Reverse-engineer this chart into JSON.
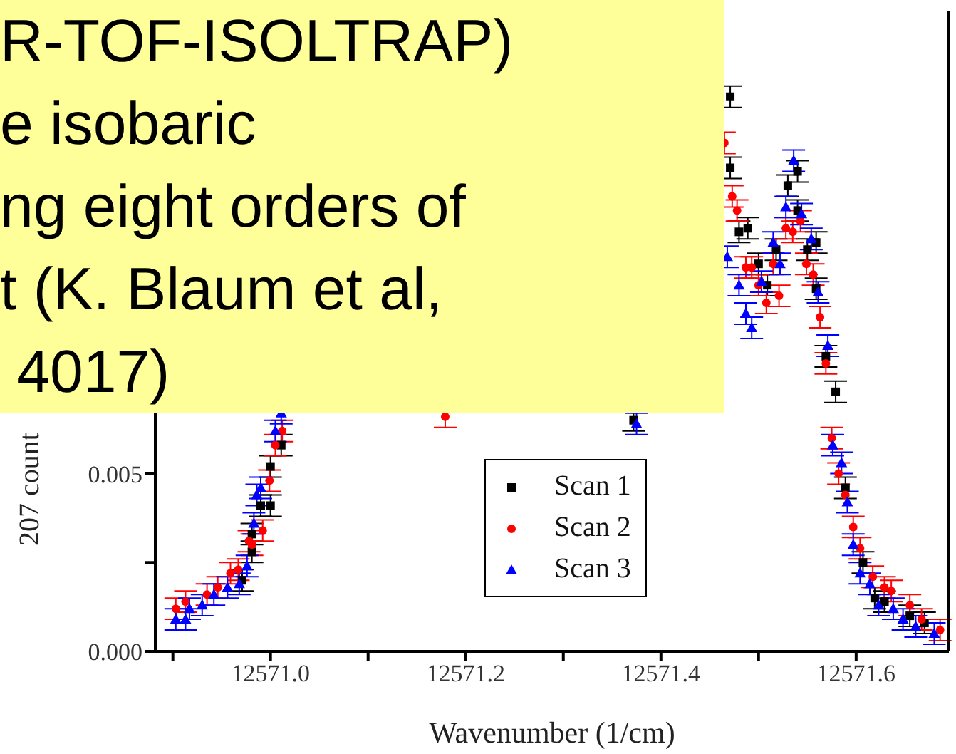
{
  "chart_data": {
    "type": "scatter",
    "xlabel": "Wavenumber (1/cm)",
    "ylabel": "207 count",
    "annotations": [
      "R-TOF-ISOLTRAP)",
      "e isobaric",
      "ng eight orders of",
      "t (K. Blaum et al,",
      " 4017)"
    ],
    "xlim": [
      12570.882,
      12571.695
    ],
    "ylim": [
      0,
      0.018
    ],
    "xticks": [
      {
        "value": 12570.9,
        "label": null
      },
      {
        "value": 12571.0,
        "label": "12571.0"
      },
      {
        "value": 12571.1,
        "label": null
      },
      {
        "value": 12571.2,
        "label": "12571.2"
      },
      {
        "value": 12571.3,
        "label": null
      },
      {
        "value": 12571.4,
        "label": "12571.4"
      },
      {
        "value": 12571.5,
        "label": null
      },
      {
        "value": 12571.6,
        "label": "12571.6"
      }
    ],
    "yticks": [
      {
        "value": 0,
        "label": "0.000"
      },
      {
        "value": 0.0025,
        "label": null
      },
      {
        "value": 0.005,
        "label": "0.005"
      },
      {
        "value": 0.0075,
        "label": null
      },
      {
        "value": 0.01,
        "label": null
      },
      {
        "value": 0.0125,
        "label": null
      },
      {
        "value": 0.015,
        "label": null
      },
      {
        "value": 0.0175,
        "label": null
      }
    ],
    "legend": "bottom",
    "grid": false,
    "series": [
      {
        "name": "Scan 1",
        "color": "#000000",
        "marker": "square",
        "x": [
          12570.971,
          12570.981,
          12570.981,
          12570.99,
          12571.0,
          12571.0,
          12571.011,
          12571.372,
          12571.471,
          12571.471,
          12571.48,
          12571.489,
          12571.5,
          12571.509,
          12571.518,
          12571.53,
          12571.54,
          12571.54,
          12571.55,
          12571.559,
          12571.559,
          12571.569,
          12571.579,
          12571.589,
          12571.607,
          12571.619,
          12571.629,
          12571.655,
          12571.67
        ],
        "values": [
          0.002,
          0.0028,
          0.0033,
          0.0041,
          0.0041,
          0.0052,
          0.0058,
          0.0065,
          0.0156,
          0.0136,
          0.0118,
          0.0119,
          0.0109,
          0.0103,
          0.0113,
          0.0131,
          0.0135,
          0.0124,
          0.0113,
          0.0115,
          0.0102,
          0.0083,
          0.0073,
          0.0046,
          0.0025,
          0.0015,
          0.0014,
          0.001,
          0.0008
        ],
        "errors": [
          0.0003,
          0.0003,
          0.0003,
          0.0003,
          0.0003,
          0.0003,
          0.0003,
          0.0003,
          0.0003,
          0.0003,
          0.0003,
          0.0003,
          0.0003,
          0.0003,
          0.0003,
          0.0003,
          0.0003,
          0.0003,
          0.0003,
          0.0003,
          0.0003,
          0.0003,
          0.0003,
          0.0003,
          0.0003,
          0.0003,
          0.0003,
          0.0003,
          0.0003
        ]
      },
      {
        "name": "Scan 2",
        "color": "#ff0000",
        "marker": "circle",
        "x": [
          12570.903,
          12570.913,
          12570.935,
          12570.946,
          12570.959,
          12570.967,
          12570.978,
          12570.981,
          12570.992,
          12570.999,
          12571.005,
          12571.012,
          12571.179,
          12571.465,
          12571.473,
          12571.478,
          12571.487,
          12571.493,
          12571.5,
          12571.508,
          12571.515,
          12571.521,
          12571.528,
          12571.535,
          12571.543,
          12571.549,
          12571.556,
          12571.563,
          12571.569,
          12571.575,
          12571.582,
          12571.589,
          12571.597,
          12571.604,
          12571.617,
          12571.629,
          12571.636,
          12571.655,
          12571.667,
          12571.686
        ],
        "values": [
          0.0012,
          0.0014,
          0.0016,
          0.0018,
          0.0022,
          0.0023,
          0.0031,
          0.003,
          0.0034,
          0.0048,
          0.0058,
          0.0062,
          0.0066,
          0.0143,
          0.0128,
          0.0124,
          0.0108,
          0.0108,
          0.0103,
          0.0098,
          0.0109,
          0.01,
          0.0119,
          0.0118,
          0.0121,
          0.0109,
          0.0106,
          0.0094,
          0.0081,
          0.006,
          0.005,
          0.0044,
          0.0035,
          0.0029,
          0.0021,
          0.0018,
          0.0017,
          0.0013,
          0.0009,
          0.0006
        ],
        "errors": [
          0.0003,
          0.0003,
          0.0003,
          0.0003,
          0.0003,
          0.0003,
          0.0003,
          0.0003,
          0.0003,
          0.0003,
          0.0003,
          0.0003,
          0.0003,
          0.0003,
          0.0003,
          0.0003,
          0.0003,
          0.0003,
          0.0003,
          0.0003,
          0.0003,
          0.0003,
          0.0003,
          0.0003,
          0.0003,
          0.0003,
          0.0003,
          0.0003,
          0.0003,
          0.0003,
          0.0003,
          null,
          0.0003,
          0.0003,
          0.0003,
          0.0003,
          0.0003,
          0.0003,
          0.0003,
          0.0003
        ]
      },
      {
        "name": "Scan 3",
        "color": "#0000ff",
        "marker": "triangle",
        "x": [
          12570.903,
          12570.913,
          12570.917,
          12570.93,
          12570.942,
          12570.956,
          12570.968,
          12570.976,
          12570.983,
          12570.986,
          12570.99,
          12571.005,
          12571.011,
          12571.375,
          12571.468,
          12571.48,
          12571.487,
          12571.493,
          12571.503,
          12571.515,
          12571.522,
          12571.528,
          12571.536,
          12571.544,
          12571.554,
          12571.561,
          12571.571,
          12571.576,
          12571.585,
          12571.591,
          12571.597,
          12571.604,
          12571.614,
          12571.623,
          12571.638,
          12571.648,
          12571.661,
          12571.68
        ],
        "values": [
          0.0009,
          0.0009,
          0.0012,
          0.0013,
          0.0016,
          0.0018,
          0.0019,
          0.0024,
          0.0036,
          0.0044,
          0.0046,
          0.0062,
          0.0067,
          0.0064,
          0.0111,
          0.0103,
          0.0095,
          0.0091,
          0.0104,
          0.0115,
          0.0109,
          0.0125,
          0.0138,
          0.0123,
          0.0116,
          0.0101,
          0.0086,
          0.0058,
          0.0053,
          0.0042,
          0.003,
          0.0022,
          0.0019,
          0.0013,
          0.0012,
          0.0009,
          0.0007,
          0.0005
        ],
        "errors": [
          0.0003,
          0.0003,
          0.0003,
          0.0003,
          0.0003,
          0.0003,
          0.0003,
          0.0003,
          0.0003,
          0.0003,
          0.0003,
          0.0003,
          0.0003,
          0.0003,
          0.0003,
          0.0003,
          0.0003,
          0.0003,
          0.0003,
          0.0003,
          0.0003,
          0.0003,
          0.0003,
          0.0003,
          0.0003,
          0.0003,
          0.0003,
          0.0003,
          0.0003,
          0.0003,
          0.0003,
          0.0003,
          0.0003,
          0.0003,
          0.0003,
          0.0003,
          0.0003,
          0.0003
        ]
      }
    ]
  }
}
